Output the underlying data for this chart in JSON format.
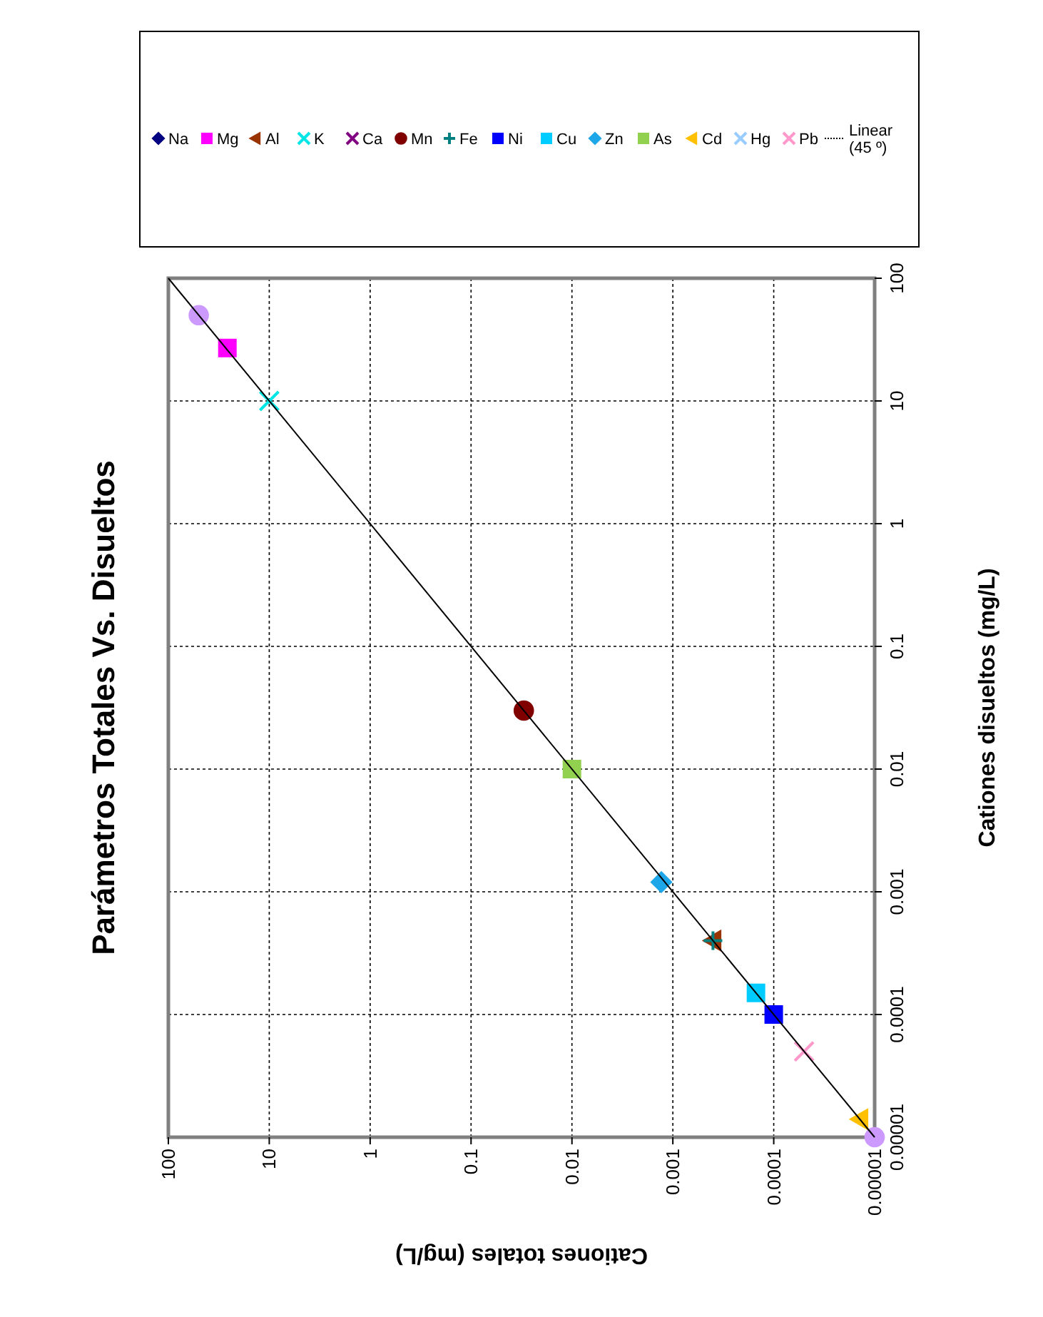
{
  "chart_data": {
    "type": "scatter",
    "title": "Parámetros Totales Vs. Disueltos",
    "xlabel": "Cationes totales (mg/L)",
    "ylabel": "Cationes disueltos (mg/L)",
    "log": "xy",
    "grid": true,
    "legend": "top",
    "xlim": [
      100,
      1e-05
    ],
    "ylim": [
      1e-05,
      100
    ],
    "xticks": [
      {
        "value": 1e-05,
        "label": "0.00001"
      },
      0.0001,
      0.001,
      0.01,
      0.1,
      1,
      10,
      100
    ],
    "yticks": [
      {
        "value": 1e-05,
        "label": "0.00001"
      },
      0.0001,
      0.001,
      0.01,
      0.1,
      1,
      10,
      100
    ],
    "series": [
      {
        "name": "Na",
        "color": "#000080",
        "marker": "diamond",
        "x": [
          null
        ],
        "values": [
          null
        ]
      },
      {
        "name": "Mg",
        "color": "#ff00ff",
        "marker": "square",
        "x": [
          26
        ],
        "values": [
          27
        ]
      },
      {
        "name": "Al",
        "color": "#993300",
        "marker": "triangle",
        "x": [
          0.0004
        ],
        "values": [
          0.0004
        ]
      },
      {
        "name": "K",
        "color": "#00e5e5",
        "marker": "cross",
        "x": [
          10
        ],
        "values": [
          10
        ]
      },
      {
        "name": "Ca",
        "color": "#800080",
        "marker": "cross",
        "x": [
          null
        ],
        "values": [
          null
        ]
      },
      {
        "name": "Mn",
        "color": "#800000",
        "marker": "circle",
        "x": [
          0.03
        ],
        "values": [
          0.03
        ]
      },
      {
        "name": "Fe",
        "color": "#008080",
        "marker": "plus",
        "x": [
          0.0004
        ],
        "values": [
          0.0004
        ]
      },
      {
        "name": "Ni",
        "color": "#0000ff",
        "marker": "square",
        "x": [
          0.0001
        ],
        "values": [
          0.0001
        ]
      },
      {
        "name": "Cu",
        "color": "#00ccff",
        "marker": "square",
        "x": [
          0.00015
        ],
        "values": [
          0.00015
        ]
      },
      {
        "name": "Zn",
        "color": "#1ea7e8",
        "marker": "diamond",
        "x": [
          0.0013
        ],
        "values": [
          0.0012
        ]
      },
      {
        "name": "As",
        "color": "#92d050",
        "marker": "square",
        "x": [
          0.01
        ],
        "values": [
          0.01
        ]
      },
      {
        "name": "Cd",
        "color": "#ffc000",
        "marker": "triangle",
        "x": [
          1.4e-05
        ],
        "values": [
          1.4e-05
        ]
      },
      {
        "name": "Hg",
        "color": "#99ccff",
        "marker": "cross",
        "x": [
          null
        ],
        "values": [
          null
        ]
      },
      {
        "name": "Pb",
        "color": "#ff99cc",
        "marker": "cross",
        "x": [
          5e-05
        ],
        "values": [
          5e-05
        ]
      },
      {
        "color": "#cc99ff",
        "marker": "circle",
        "x": [
          50,
          1e-05
        ],
        "values": [
          50,
          1e-05
        ]
      },
      {
        "name": "Linear (45 º)",
        "type": "line",
        "color": "#000000",
        "marker": "none",
        "line_style": "solid",
        "x": [
          1e-05,
          100
        ],
        "values": [
          1e-05,
          100
        ]
      }
    ]
  }
}
